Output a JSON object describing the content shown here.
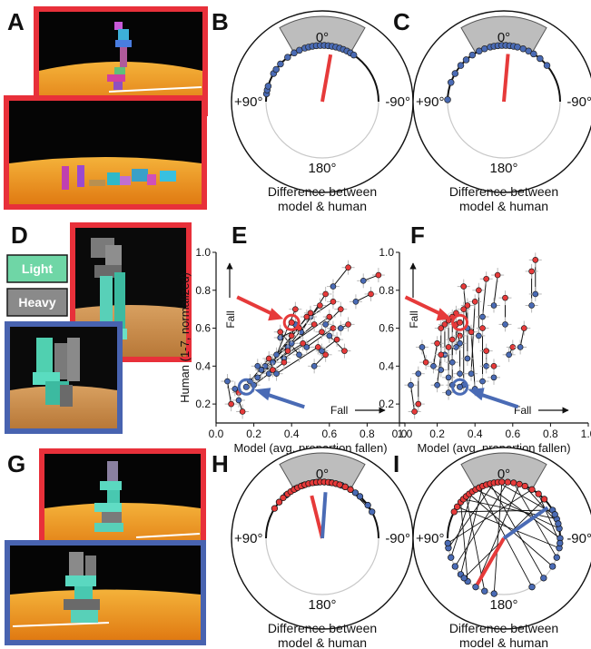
{
  "panel_letters": [
    "A",
    "B",
    "C",
    "D",
    "E",
    "F",
    "G",
    "H",
    "I"
  ],
  "legend": {
    "light": "Light",
    "heavy": "Heavy",
    "light_color": "#6fd6a6",
    "heavy_color": "#8a8a8a"
  },
  "colors": {
    "red": "#e63a3a",
    "blue": "#4a6bb5",
    "red_frame": "#e8303a",
    "blue_frame": "#4863b0"
  },
  "chart_data": [
    {
      "id": "B",
      "type": "polar",
      "angle_labels": {
        "top": "0°",
        "left": "+90°",
        "right": "-90°",
        "bottom": "180°"
      },
      "caption": [
        "Difference between",
        "model & human"
      ],
      "mean_vector": {
        "color": "red",
        "angle_deg": -10,
        "length": 0.85
      },
      "points": [
        {
          "angle": 82,
          "c": "blue"
        },
        {
          "angle": 78,
          "c": "blue"
        },
        {
          "angle": 74,
          "c": "blue"
        },
        {
          "angle": 60,
          "c": "blue"
        },
        {
          "angle": 55,
          "c": "blue"
        },
        {
          "angle": 48,
          "c": "blue"
        },
        {
          "angle": 38,
          "c": "blue"
        },
        {
          "angle": 30,
          "c": "blue"
        },
        {
          "angle": 24,
          "c": "blue"
        },
        {
          "angle": 18,
          "c": "blue"
        },
        {
          "angle": 14,
          "c": "blue"
        },
        {
          "angle": 10,
          "c": "blue"
        },
        {
          "angle": 6,
          "c": "blue"
        },
        {
          "angle": 2,
          "c": "blue"
        },
        {
          "angle": -2,
          "c": "blue"
        },
        {
          "angle": -6,
          "c": "blue"
        },
        {
          "angle": -10,
          "c": "blue"
        },
        {
          "angle": -14,
          "c": "blue"
        },
        {
          "angle": -18,
          "c": "blue"
        },
        {
          "angle": -22,
          "c": "blue"
        },
        {
          "angle": -26,
          "c": "blue"
        },
        {
          "angle": -30,
          "c": "blue"
        },
        {
          "angle": -34,
          "c": "blue"
        }
      ]
    },
    {
      "id": "C",
      "type": "polar",
      "angle_labels": {
        "top": "0°",
        "left": "+90°",
        "right": "-90°",
        "bottom": "180°"
      },
      "caption": [
        "Difference between",
        "model & human"
      ],
      "mean_vector": {
        "color": "red",
        "angle_deg": -5,
        "length": 0.85
      },
      "points": [
        {
          "angle": 88,
          "c": "blue"
        },
        {
          "angle": 70,
          "c": "blue"
        },
        {
          "angle": 60,
          "c": "blue"
        },
        {
          "angle": 50,
          "c": "blue"
        },
        {
          "angle": 42,
          "c": "blue"
        },
        {
          "angle": 34,
          "c": "blue"
        },
        {
          "angle": 26,
          "c": "blue"
        },
        {
          "angle": 20,
          "c": "blue"
        },
        {
          "angle": 14,
          "c": "blue"
        },
        {
          "angle": 10,
          "c": "blue"
        },
        {
          "angle": 6,
          "c": "blue"
        },
        {
          "angle": 2,
          "c": "blue"
        },
        {
          "angle": -2,
          "c": "blue"
        },
        {
          "angle": -6,
          "c": "blue"
        },
        {
          "angle": -10,
          "c": "blue"
        },
        {
          "angle": -14,
          "c": "blue"
        },
        {
          "angle": -20,
          "c": "blue"
        },
        {
          "angle": -26,
          "c": "blue"
        },
        {
          "angle": -32,
          "c": "blue"
        },
        {
          "angle": -40,
          "c": "blue"
        },
        {
          "angle": -50,
          "c": "blue"
        }
      ]
    },
    {
      "id": "E",
      "type": "scatter",
      "xlabel": "Model (avg. proportion fallen)",
      "ylabel": "Human (1-7, normalized)",
      "xlim": [
        0,
        1.0
      ],
      "ylim": [
        0.1,
        1.0
      ],
      "xticks": [
        "0.0",
        "0.2",
        "0.4",
        "0.6",
        "0.8",
        "1.0"
      ],
      "yticks": [
        "0.2",
        "0.4",
        "0.6",
        "0.8",
        "1.0"
      ],
      "fall_x": "Fall",
      "fall_y": "Fall",
      "highlight_red": {
        "x": 0.4,
        "y": 0.63
      },
      "highlight_blue": {
        "x": 0.16,
        "y": 0.29
      },
      "pairs": [
        {
          "r": [
            0.86,
            0.88
          ],
          "b": [
            0.78,
            0.85
          ]
        },
        {
          "r": [
            0.7,
            0.92
          ],
          "b": [
            0.62,
            0.82
          ]
        },
        {
          "r": [
            0.82,
            0.78
          ],
          "b": [
            0.74,
            0.74
          ]
        },
        {
          "r": [
            0.62,
            0.74
          ],
          "b": [
            0.5,
            0.66
          ]
        },
        {
          "r": [
            0.66,
            0.7
          ],
          "b": [
            0.58,
            0.62
          ]
        },
        {
          "r": [
            0.58,
            0.78
          ],
          "b": [
            0.45,
            0.58
          ]
        },
        {
          "r": [
            0.55,
            0.72
          ],
          "b": [
            0.38,
            0.5
          ]
        },
        {
          "r": [
            0.5,
            0.68
          ],
          "b": [
            0.32,
            0.46
          ]
        },
        {
          "r": [
            0.48,
            0.66
          ],
          "b": [
            0.3,
            0.42
          ]
        },
        {
          "r": [
            0.44,
            0.6
          ],
          "b": [
            0.34,
            0.55
          ]
        },
        {
          "r": [
            0.52,
            0.62
          ],
          "b": [
            0.26,
            0.4
          ]
        },
        {
          "r": [
            0.6,
            0.66
          ],
          "b": [
            0.4,
            0.52
          ]
        },
        {
          "r": [
            0.42,
            0.7
          ],
          "b": [
            0.28,
            0.36
          ]
        },
        {
          "r": [
            0.56,
            0.58
          ],
          "b": [
            0.36,
            0.44
          ]
        },
        {
          "r": [
            0.46,
            0.52
          ],
          "b": [
            0.24,
            0.38
          ]
        },
        {
          "r": [
            0.4,
            0.56
          ],
          "b": [
            0.42,
            0.62
          ]
        },
        {
          "r": [
            0.38,
            0.48
          ],
          "b": [
            0.22,
            0.34
          ]
        },
        {
          "r": [
            0.62,
            0.6
          ],
          "b": [
            0.48,
            0.5
          ]
        },
        {
          "r": [
            0.54,
            0.5
          ],
          "b": [
            0.32,
            0.36
          ]
        },
        {
          "r": [
            0.64,
            0.54
          ],
          "b": [
            0.56,
            0.48
          ]
        },
        {
          "r": [
            0.36,
            0.42
          ],
          "b": [
            0.2,
            0.3
          ]
        },
        {
          "r": [
            0.3,
            0.38
          ],
          "b": [
            0.22,
            0.4
          ]
        },
        {
          "r": [
            0.68,
            0.48
          ],
          "b": [
            0.6,
            0.56
          ]
        },
        {
          "r": [
            0.34,
            0.58
          ],
          "b": [
            0.44,
            0.46
          ]
        },
        {
          "r": [
            0.28,
            0.44
          ],
          "b": [
            0.18,
            0.32
          ]
        },
        {
          "r": [
            0.7,
            0.62
          ],
          "b": [
            0.66,
            0.6
          ]
        },
        {
          "r": [
            0.08,
            0.2
          ],
          "b": [
            0.06,
            0.32
          ]
        },
        {
          "r": [
            0.12,
            0.26
          ],
          "b": [
            0.1,
            0.28
          ]
        },
        {
          "r": [
            0.14,
            0.16
          ],
          "b": [
            0.12,
            0.22
          ]
        },
        {
          "r": [
            0.58,
            0.46
          ],
          "b": [
            0.52,
            0.4
          ]
        }
      ]
    },
    {
      "id": "F",
      "type": "scatter",
      "xlabel": "Model (avg. proportion fallen)",
      "ylabel": "",
      "xlim": [
        0,
        1.0
      ],
      "ylim": [
        0.1,
        1.0
      ],
      "xticks": [
        "0.0",
        "0.2",
        "0.4",
        "0.6",
        "0.8",
        "1.0"
      ],
      "yticks": [
        "0.2",
        "0.4",
        "0.6",
        "0.8",
        "1.0"
      ],
      "fall_x": "Fall",
      "fall_y": "Fall",
      "highlight_red": {
        "x": 0.32,
        "y": 0.63
      },
      "highlight_blue": {
        "x": 0.32,
        "y": 0.29
      },
      "pairs": [
        {
          "r": [
            0.72,
            0.96
          ],
          "b": [
            0.72,
            0.78
          ]
        },
        {
          "r": [
            0.7,
            0.9
          ],
          "b": [
            0.7,
            0.72
          ]
        },
        {
          "r": [
            0.52,
            0.88
          ],
          "b": [
            0.5,
            0.72
          ]
        },
        {
          "r": [
            0.46,
            0.86
          ],
          "b": [
            0.44,
            0.66
          ]
        },
        {
          "r": [
            0.56,
            0.76
          ],
          "b": [
            0.56,
            0.62
          ]
        },
        {
          "r": [
            0.42,
            0.8
          ],
          "b": [
            0.42,
            0.56
          ]
        },
        {
          "r": [
            0.4,
            0.74
          ],
          "b": [
            0.38,
            0.36
          ]
        },
        {
          "r": [
            0.36,
            0.72
          ],
          "b": [
            0.36,
            0.44
          ]
        },
        {
          "r": [
            0.34,
            0.7
          ],
          "b": [
            0.34,
            0.3
          ]
        },
        {
          "r": [
            0.3,
            0.68
          ],
          "b": [
            0.3,
            0.5
          ]
        },
        {
          "r": [
            0.28,
            0.66
          ],
          "b": [
            0.28,
            0.42
          ]
        },
        {
          "r": [
            0.26,
            0.64
          ],
          "b": [
            0.26,
            0.34
          ]
        },
        {
          "r": [
            0.24,
            0.62
          ],
          "b": [
            0.24,
            0.46
          ]
        },
        {
          "r": [
            0.22,
            0.6
          ],
          "b": [
            0.22,
            0.38
          ]
        },
        {
          "r": [
            0.44,
            0.6
          ],
          "b": [
            0.44,
            0.32
          ]
        },
        {
          "r": [
            0.38,
            0.58
          ],
          "b": [
            0.4,
            0.28
          ]
        },
        {
          "r": [
            0.32,
            0.56
          ],
          "b": [
            0.32,
            0.36
          ]
        },
        {
          "r": [
            0.28,
            0.54
          ],
          "b": [
            0.28,
            0.3
          ]
        },
        {
          "r": [
            0.26,
            0.5
          ],
          "b": [
            0.26,
            0.26
          ]
        },
        {
          "r": [
            0.2,
            0.52
          ],
          "b": [
            0.18,
            0.4
          ]
        },
        {
          "r": [
            0.22,
            0.46
          ],
          "b": [
            0.2,
            0.3
          ]
        },
        {
          "r": [
            0.46,
            0.48
          ],
          "b": [
            0.46,
            0.4
          ]
        },
        {
          "r": [
            0.6,
            0.5
          ],
          "b": [
            0.58,
            0.46
          ]
        },
        {
          "r": [
            0.66,
            0.6
          ],
          "b": [
            0.64,
            0.5
          ]
        },
        {
          "r": [
            0.5,
            0.4
          ],
          "b": [
            0.5,
            0.34
          ]
        },
        {
          "r": [
            0.08,
            0.16
          ],
          "b": [
            0.06,
            0.3
          ]
        },
        {
          "r": [
            0.1,
            0.2
          ],
          "b": [
            0.1,
            0.36
          ]
        },
        {
          "r": [
            0.14,
            0.42
          ],
          "b": [
            0.12,
            0.5
          ]
        },
        {
          "r": [
            0.34,
            0.82
          ],
          "b": [
            0.36,
            0.6
          ]
        },
        {
          "r": [
            0.3,
            0.62
          ],
          "b": [
            0.32,
            0.52
          ]
        }
      ]
    },
    {
      "id": "H",
      "type": "polar",
      "angle_labels": {
        "top": "0°",
        "left": "+90°",
        "right": "-90°",
        "bottom": "180°"
      },
      "caption": [
        "Difference between",
        "model & human"
      ],
      "vectors": [
        {
          "color": "red",
          "angle_deg": 14,
          "length": 0.78
        },
        {
          "color": "blue",
          "angle_deg": -4,
          "length": 0.82
        }
      ],
      "pairs": [
        {
          "r": 58,
          "b": 50
        },
        {
          "r": 50,
          "b": 40
        },
        {
          "r": 44,
          "b": 30
        },
        {
          "r": 38,
          "b": 28
        },
        {
          "r": 34,
          "b": 20
        },
        {
          "r": 30,
          "b": 14
        },
        {
          "r": 26,
          "b": 8
        },
        {
          "r": 22,
          "b": 18
        },
        {
          "r": 18,
          "b": 4
        },
        {
          "r": 14,
          "b": -2
        },
        {
          "r": 10,
          "b": 6
        },
        {
          "r": 6,
          "b": -8
        },
        {
          "r": 2,
          "b": -14
        },
        {
          "r": -2,
          "b": -20
        },
        {
          "r": -6,
          "b": -24
        },
        {
          "r": -10,
          "b": -30
        },
        {
          "r": -14,
          "b": -36
        },
        {
          "r": -18,
          "b": -42
        },
        {
          "r": -24,
          "b": -54
        },
        {
          "r": -30,
          "b": -62
        }
      ]
    },
    {
      "id": "I",
      "type": "polar",
      "angle_labels": {
        "top": "0°",
        "left": "+90°",
        "right": "-90°",
        "bottom": "180°"
      },
      "caption": [
        "Difference between",
        "model & human"
      ],
      "vectors": [
        {
          "color": "red",
          "angle_deg": 150,
          "length": 0.95
        },
        {
          "color": "blue",
          "angle_deg": -55,
          "length": 0.95
        }
      ],
      "pairs": [
        {
          "r": 62,
          "b": -60
        },
        {
          "r": 56,
          "b": -100
        },
        {
          "r": 50,
          "b": 140
        },
        {
          "r": 46,
          "b": -70
        },
        {
          "r": 42,
          "b": 160
        },
        {
          "r": 38,
          "b": -120
        },
        {
          "r": 34,
          "b": 110
        },
        {
          "r": 30,
          "b": -80
        },
        {
          "r": 26,
          "b": -150
        },
        {
          "r": 22,
          "b": 130
        },
        {
          "r": 18,
          "b": -90
        },
        {
          "r": 14,
          "b": -135
        },
        {
          "r": 10,
          "b": 100
        },
        {
          "r": 6,
          "b": -65
        },
        {
          "r": 2,
          "b": 170
        },
        {
          "r": -4,
          "b": 120
        },
        {
          "r": -10,
          "b": -110
        },
        {
          "r": -16,
          "b": 150
        },
        {
          "r": -22,
          "b": -75
        },
        {
          "r": -30,
          "b": 95
        },
        {
          "r": -38,
          "b": -95
        },
        {
          "r": -46,
          "b": 135
        }
      ]
    }
  ]
}
